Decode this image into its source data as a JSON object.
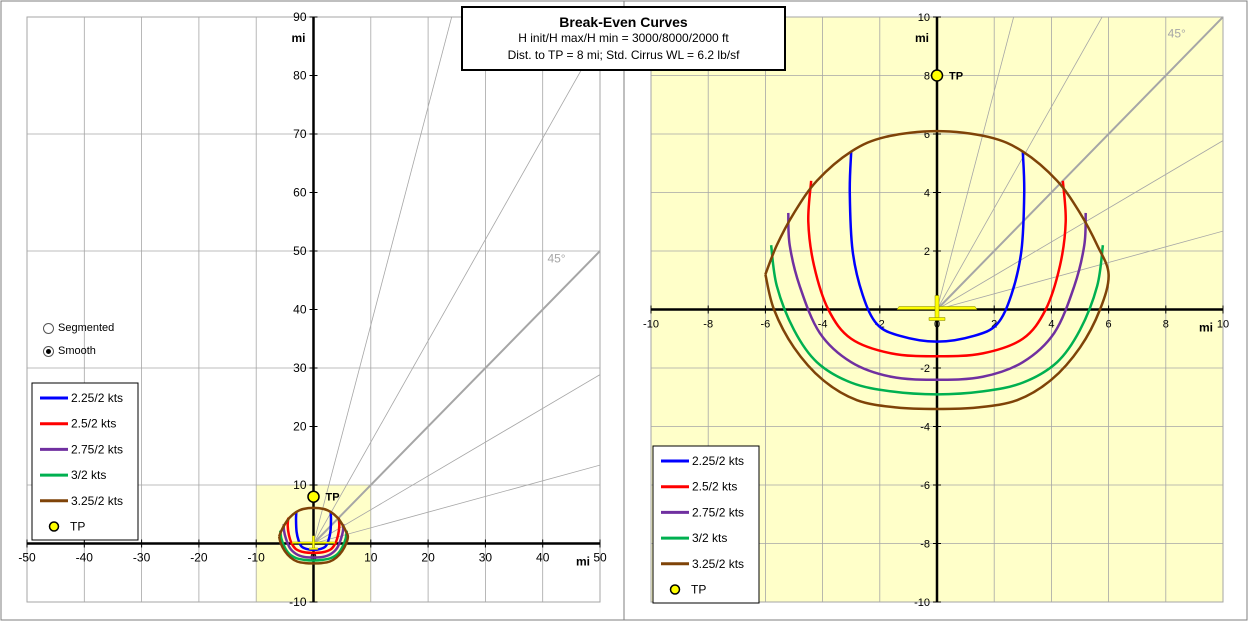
{
  "title": {
    "main": "Break-Even Curves",
    "line1": "H init/H max/H min = 3000/8000/2000 ft",
    "line2": "Dist. to TP = 8 mi; Std. Cirrus WL = 6.2 lb/sf"
  },
  "radio": {
    "options": [
      "Segmented",
      "Smooth"
    ],
    "selected": "Smooth"
  },
  "colors": {
    "plot_bg_right": "#ffffc9",
    "highlight_left": "#ffffc9",
    "grid": "#a6a6a6",
    "ray": "#a6a6a6",
    "tp_fill": "#ffff00",
    "glider": "#ffff00"
  },
  "chart_data": [
    {
      "type": "line",
      "id": "overview",
      "xlabel": "mi",
      "ylabel": "mi",
      "xlim": [
        -50,
        50
      ],
      "ylim": [
        -10,
        90
      ],
      "xticks": [
        -50,
        -40,
        -30,
        -20,
        -10,
        0,
        10,
        20,
        30,
        40,
        50
      ],
      "yticks": [
        -10,
        10,
        20,
        30,
        40,
        50,
        60,
        70,
        80,
        90
      ],
      "tick_labels_x": [
        "-50",
        "-40",
        "-30",
        "-20",
        "-10",
        "0",
        "10",
        "20",
        "30",
        "40",
        "50"
      ],
      "tick_labels_y": [
        "-10",
        "10",
        "20",
        "30",
        "40",
        "50",
        "60",
        "70",
        "80",
        "90"
      ],
      "grid": true,
      "highlight_region": {
        "x": [
          -10,
          10
        ],
        "y": [
          -10,
          10
        ]
      },
      "ray_label": "45°",
      "rays_deg": [
        15,
        30,
        45,
        60,
        75
      ],
      "tp": {
        "x": 0,
        "y": 8,
        "label": "TP"
      },
      "legend": {
        "position": "bottom-left",
        "entries": [
          "2.25/2 kts",
          "2.5/2 kts",
          "2.75/2 kts",
          "3/2 kts",
          "3.25/2 kts",
          "TP"
        ]
      }
    },
    {
      "type": "line",
      "id": "detail",
      "xlabel": "mi",
      "ylabel": "mi",
      "xlim": [
        -10,
        10
      ],
      "ylim": [
        -10,
        10
      ],
      "xticks": [
        -10,
        -8,
        -6,
        -4,
        -2,
        0,
        2,
        4,
        6,
        8,
        10
      ],
      "yticks": [
        -10,
        -8,
        -6,
        -4,
        -2,
        2,
        4,
        6,
        8,
        10
      ],
      "tick_labels_x": [
        "-10",
        "-8",
        "-6",
        "-4",
        "-2",
        "0",
        "2",
        "4",
        "6",
        "8",
        "10"
      ],
      "tick_labels_y": [
        "-10",
        "-8",
        "-6",
        "-4",
        "-2",
        "2",
        "4",
        "6",
        "8",
        "10"
      ],
      "grid": true,
      "ray_label": "45°",
      "rays_deg": [
        15,
        30,
        45,
        60,
        75
      ],
      "tp": {
        "x": 0,
        "y": 8,
        "label": "TP"
      },
      "legend": {
        "position": "bottom-left",
        "entries": [
          "2.25/2 kts",
          "2.5/2 kts",
          "2.75/2 kts",
          "3/2 kts",
          "3.25/2 kts",
          "TP"
        ]
      }
    }
  ],
  "series": [
    {
      "name": "2.25/2 kts",
      "color": "#0000ff",
      "points": [
        [
          -3.0,
          5.4
        ],
        [
          -3.05,
          4.0
        ],
        [
          -2.95,
          2.0
        ],
        [
          -2.6,
          0.5
        ],
        [
          -2.1,
          -0.5
        ],
        [
          -1.3,
          -0.9
        ],
        [
          0,
          -1.1
        ],
        [
          1.3,
          -0.9
        ],
        [
          2.1,
          -0.5
        ],
        [
          2.6,
          0.5
        ],
        [
          2.95,
          2.0
        ],
        [
          3.05,
          4.0
        ],
        [
          3.0,
          5.4
        ]
      ]
    },
    {
      "name": "2.5/2 kts",
      "color": "#ff0000",
      "points": [
        [
          -4.4,
          4.4
        ],
        [
          -4.5,
          3.0
        ],
        [
          -4.3,
          1.5
        ],
        [
          -3.8,
          0.0
        ],
        [
          -3.0,
          -1.0
        ],
        [
          -1.6,
          -1.5
        ],
        [
          0,
          -1.6
        ],
        [
          1.6,
          -1.5
        ],
        [
          3.0,
          -1.0
        ],
        [
          3.8,
          0.0
        ],
        [
          4.3,
          1.5
        ],
        [
          4.5,
          3.0
        ],
        [
          4.4,
          4.4
        ]
      ]
    },
    {
      "name": "2.75/2 kts",
      "color": "#7030a0",
      "points": [
        [
          -5.2,
          3.3
        ],
        [
          -5.15,
          2.2
        ],
        [
          -4.8,
          0.8
        ],
        [
          -4.1,
          -0.8
        ],
        [
          -3.0,
          -1.8
        ],
        [
          -1.6,
          -2.3
        ],
        [
          0,
          -2.4
        ],
        [
          1.6,
          -2.3
        ],
        [
          3.0,
          -1.8
        ],
        [
          4.1,
          -0.8
        ],
        [
          4.8,
          0.8
        ],
        [
          5.15,
          2.2
        ],
        [
          5.2,
          3.3
        ]
      ]
    },
    {
      "name": "3/2 kts",
      "color": "#00b050",
      "points": [
        [
          -5.8,
          2.2
        ],
        [
          -5.6,
          0.8
        ],
        [
          -5.0,
          -0.7
        ],
        [
          -4.2,
          -1.8
        ],
        [
          -3.0,
          -2.5
        ],
        [
          -1.6,
          -2.8
        ],
        [
          0,
          -2.9
        ],
        [
          1.6,
          -2.8
        ],
        [
          3.0,
          -2.5
        ],
        [
          4.2,
          -1.8
        ],
        [
          5.0,
          -0.7
        ],
        [
          5.6,
          0.8
        ],
        [
          5.8,
          2.2
        ]
      ]
    },
    {
      "name": "3.25/2 kts",
      "color": "#7f4308",
      "points": [
        [
          -6.0,
          1.2
        ],
        [
          -5.7,
          0.0
        ],
        [
          -5.0,
          -1.3
        ],
        [
          -4.0,
          -2.4
        ],
        [
          -2.8,
          -3.1
        ],
        [
          -1.4,
          -3.35
        ],
        [
          0,
          -3.4
        ],
        [
          1.4,
          -3.35
        ],
        [
          2.8,
          -3.1
        ],
        [
          4.0,
          -2.4
        ],
        [
          5.0,
          -1.3
        ],
        [
          5.7,
          0.0
        ],
        [
          6.0,
          1.2
        ],
        [
          5.6,
          2.2
        ],
        [
          5.0,
          3.3
        ],
        [
          4.2,
          4.4
        ],
        [
          3.0,
          5.4
        ],
        [
          1.8,
          5.9
        ],
        [
          0,
          6.1
        ],
        [
          -1.8,
          5.9
        ],
        [
          -3.0,
          5.4
        ],
        [
          -4.2,
          4.4
        ],
        [
          -5.0,
          3.3
        ],
        [
          -5.6,
          2.2
        ],
        [
          -6.0,
          1.2
        ]
      ]
    }
  ]
}
